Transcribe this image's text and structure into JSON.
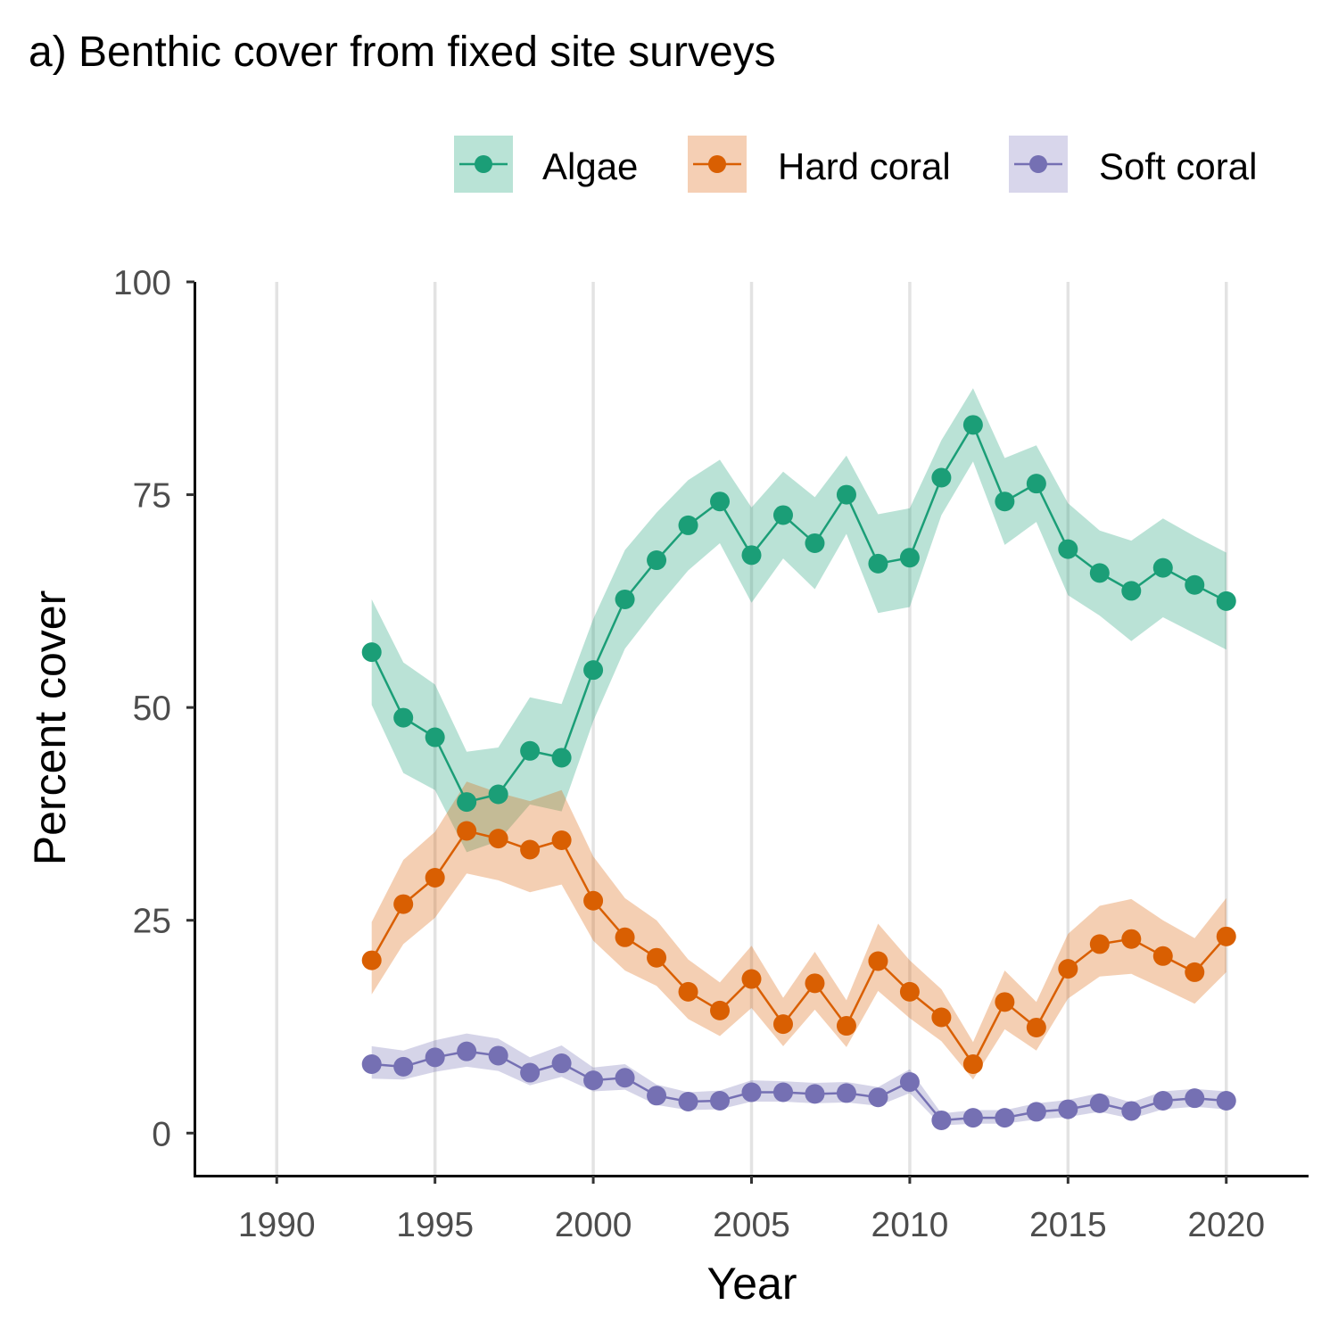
{
  "chart_data": {
    "type": "line",
    "title": "a) Benthic cover from fixed site surveys",
    "xlabel": "Year",
    "ylabel": "Percent cover",
    "xlim": [
      1987.4,
      2022.6
    ],
    "ylim": [
      -5,
      100
    ],
    "x_ticks": [
      1990,
      1995,
      2000,
      2005,
      2010,
      2015,
      2020
    ],
    "y_ticks": [
      0,
      25,
      50,
      75,
      100
    ],
    "grid": "vertical major gridlines",
    "legend_position": "top-right",
    "x": [
      1993,
      1994,
      1995,
      1996,
      1997,
      1998,
      1999,
      2000,
      2001,
      2002,
      2003,
      2004,
      2005,
      2006,
      2007,
      2008,
      2009,
      2010,
      2011,
      2012,
      2013,
      2014,
      2015,
      2016,
      2017,
      2018,
      2019,
      2020
    ],
    "series": [
      {
        "name": "Algae",
        "color": "#1b9e77",
        "fill": "#b9e3d6",
        "values": [
          56.5,
          48.8,
          46.5,
          38.9,
          39.8,
          44.9,
          44.1,
          54.4,
          62.7,
          67.3,
          71.4,
          74.2,
          67.9,
          72.6,
          69.3,
          75.0,
          66.9,
          67.6,
          77.0,
          83.2,
          74.2,
          76.3,
          68.6,
          65.8,
          63.7,
          66.4,
          64.4,
          62.5
        ],
        "lower": [
          50.3,
          42.3,
          40.3,
          33.0,
          34.3,
          38.6,
          37.8,
          48.4,
          56.9,
          61.7,
          66.1,
          69.3,
          62.3,
          67.5,
          63.9,
          70.4,
          61.1,
          61.8,
          72.6,
          78.9,
          69.1,
          71.8,
          63.2,
          60.8,
          57.8,
          60.6,
          58.7,
          56.8
        ],
        "upper": [
          62.7,
          55.3,
          52.7,
          44.8,
          45.3,
          51.2,
          50.4,
          60.4,
          68.5,
          72.9,
          76.7,
          79.1,
          73.5,
          77.7,
          74.7,
          79.6,
          72.7,
          73.4,
          81.4,
          87.5,
          79.3,
          80.8,
          74.0,
          70.8,
          69.6,
          72.2,
          70.1,
          68.2
        ]
      },
      {
        "name": "Hard coral",
        "color": "#d95f02",
        "fill": "#f5cfb4",
        "values": [
          20.3,
          26.9,
          30.0,
          35.5,
          34.6,
          33.3,
          34.4,
          27.3,
          23.0,
          20.6,
          16.6,
          14.4,
          18.1,
          12.8,
          17.6,
          12.6,
          20.2,
          16.6,
          13.6,
          8.1,
          15.4,
          12.4,
          19.3,
          22.2,
          22.8,
          20.8,
          18.9,
          23.1
        ],
        "lower": [
          16.3,
          22.2,
          25.3,
          30.5,
          29.7,
          28.3,
          29.2,
          22.6,
          19.1,
          17.3,
          13.4,
          11.4,
          14.7,
          10.2,
          14.5,
          10.1,
          16.7,
          13.5,
          10.8,
          6.3,
          12.2,
          9.7,
          15.8,
          18.4,
          18.7,
          17.0,
          15.2,
          18.9
        ],
        "upper": [
          24.8,
          32.1,
          35.4,
          41.3,
          40.0,
          39.0,
          40.3,
          32.5,
          27.6,
          25.0,
          20.4,
          17.7,
          22.0,
          15.9,
          21.3,
          15.6,
          24.6,
          20.3,
          16.9,
          10.7,
          19.1,
          15.4,
          23.4,
          26.7,
          27.5,
          25.0,
          22.9,
          27.6
        ]
      },
      {
        "name": "Soft coral",
        "color": "#7570b3",
        "fill": "#d8d6eb",
        "values": [
          8.1,
          7.8,
          8.9,
          9.6,
          9.1,
          7.1,
          8.2,
          6.2,
          6.5,
          4.4,
          3.7,
          3.8,
          4.8,
          4.8,
          4.6,
          4.7,
          4.2,
          6.0,
          1.5,
          1.8,
          1.8,
          2.5,
          2.8,
          3.5,
          2.6,
          3.8,
          4.1,
          3.8
        ],
        "lower": [
          6.4,
          6.3,
          7.2,
          7.8,
          7.3,
          5.6,
          6.6,
          4.9,
          5.1,
          3.3,
          2.7,
          2.8,
          3.7,
          3.7,
          3.5,
          3.6,
          3.2,
          4.7,
          0.9,
          1.1,
          1.1,
          1.6,
          1.9,
          2.5,
          1.7,
          2.8,
          3.1,
          2.8
        ],
        "upper": [
          10.2,
          9.7,
          10.9,
          11.7,
          11.1,
          8.9,
          10.3,
          7.7,
          8.1,
          5.7,
          4.8,
          5.0,
          6.2,
          6.1,
          5.9,
          6.0,
          5.4,
          7.5,
          2.3,
          2.7,
          2.7,
          3.5,
          3.9,
          4.7,
          3.6,
          4.9,
          5.2,
          4.9
        ]
      }
    ]
  }
}
